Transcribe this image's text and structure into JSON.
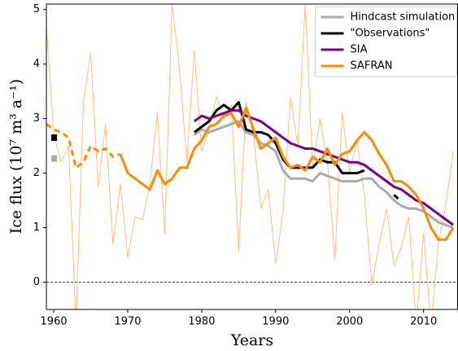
{
  "chart_data": {
    "type": "line",
    "ylabel": "Ice flux (10⁷ m³ a⁻¹)",
    "xlabel": "Years",
    "xlim": [
      1959,
      2014.6
    ],
    "ylim": [
      -0.5,
      5.1
    ],
    "xticks": [
      1960,
      1970,
      1980,
      1990,
      2000,
      2010
    ],
    "yticks": [
      0,
      1,
      2,
      3,
      4,
      5
    ],
    "hline": 0,
    "legend": "upper right",
    "series": [
      {
        "color": "#ffbf80",
        "style": "thin",
        "x": [
          1959,
          1960,
          1961,
          1962,
          1963,
          1964,
          1965,
          1966,
          1967,
          1968,
          1969,
          1970,
          1971,
          1972,
          1973,
          1974,
          1975,
          1976,
          1977,
          1978,
          1979,
          1980,
          1981,
          1982,
          1983,
          1984,
          1985,
          1986,
          1987,
          1988,
          1989,
          1990,
          1991,
          1992,
          1993,
          1994,
          1995,
          1996,
          1997,
          1998,
          1999,
          2000,
          2001,
          2002,
          2003,
          2004,
          2005,
          2006,
          2007,
          2008,
          2009,
          2010,
          2011,
          2012,
          2013,
          2014
        ],
        "values": [
          4.7,
          2.7,
          2.2,
          2.5,
          -0.8,
          3.3,
          4.2,
          1.75,
          2.9,
          0.7,
          1.8,
          0.45,
          1.2,
          1.15,
          1.8,
          3.1,
          0.9,
          5.1,
          3.9,
          2.2,
          4.25,
          2.4,
          2.8,
          3.4,
          3.0,
          3.25,
          0.55,
          3.3,
          2.7,
          1.35,
          1.7,
          0.33,
          1.3,
          3.4,
          2.5,
          5.1,
          2.1,
          3.0,
          2.2,
          0.4,
          3.1,
          2.0,
          2.6,
          1.6,
          -0.05,
          0.7,
          1.35,
          0.3,
          0.65,
          1.2,
          -0.8,
          0.9,
          -0.8,
          0.7,
          1.4,
          2.4
        ]
      },
      {
        "name": "Hindcast simulation",
        "color": "#aaaaaa",
        "style": "solid",
        "x": [
          1979,
          1980,
          1981,
          1982,
          1983,
          1984,
          1985,
          1986,
          1987,
          1988,
          1989,
          1990,
          1991,
          1992,
          1993,
          1994,
          1995,
          1996,
          1997,
          1998,
          1999,
          2000,
          2001,
          2002,
          2003,
          2004,
          2005,
          2006,
          2007,
          2008,
          2009,
          2010,
          2011,
          2012,
          2013,
          2014
        ],
        "values": [
          2.7,
          2.8,
          2.75,
          2.8,
          2.85,
          2.9,
          2.95,
          2.75,
          2.7,
          2.55,
          2.5,
          2.4,
          2.05,
          1.9,
          1.9,
          1.9,
          1.85,
          2.0,
          1.95,
          1.9,
          1.85,
          1.85,
          1.85,
          1.9,
          1.9,
          1.75,
          1.65,
          1.5,
          1.4,
          1.35,
          1.35,
          1.3,
          1.2,
          1.1,
          1.05,
          1.0
        ]
      },
      {
        "name": "\"Observations\"",
        "color": "#000000",
        "style": "solid",
        "x": [
          1979,
          1980,
          1981,
          1982,
          1983,
          1984,
          1985,
          1986,
          1987,
          1988,
          1989,
          1990,
          1991,
          1992,
          1993,
          1994,
          1995,
          1996,
          1997,
          1998,
          1999,
          2000,
          2001,
          2002
        ],
        "values": [
          2.75,
          2.85,
          2.95,
          3.15,
          3.25,
          3.15,
          3.3,
          2.8,
          2.75,
          2.75,
          2.7,
          2.55,
          2.25,
          2.1,
          2.1,
          2.1,
          2.1,
          2.25,
          2.2,
          2.2,
          2.0,
          2.0,
          2.0,
          2.05
        ]
      },
      {
        "color": "#000000",
        "style": "dashed",
        "x": [
          2006,
          2007
        ],
        "values": [
          1.6,
          1.48
        ]
      },
      {
        "name": "SIA",
        "color": "#800080",
        "style": "solid",
        "x": [
          1979,
          1980,
          1981,
          1982,
          1983,
          1984,
          1985,
          1986,
          1987,
          1988,
          1989,
          1990,
          1991,
          1992,
          1993,
          1994,
          1995,
          1996,
          1997,
          1998,
          1999,
          2000,
          2001,
          2002,
          2003,
          2004,
          2005,
          2006,
          2007,
          2008,
          2009,
          2010,
          2011,
          2012,
          2013,
          2014
        ],
        "values": [
          2.95,
          3.05,
          3.0,
          3.05,
          3.1,
          3.15,
          3.15,
          3.05,
          3.0,
          2.95,
          2.85,
          2.75,
          2.65,
          2.55,
          2.5,
          2.45,
          2.45,
          2.4,
          2.35,
          2.3,
          2.25,
          2.2,
          2.2,
          2.15,
          2.05,
          1.95,
          1.85,
          1.75,
          1.7,
          1.6,
          1.5,
          1.45,
          1.35,
          1.25,
          1.15,
          1.05
        ]
      },
      {
        "name": "SAFRAN",
        "color": "#ff8c00",
        "style": "solid",
        "x": [
          1969,
          1970,
          1971,
          1972,
          1973,
          1974,
          1975,
          1976,
          1977,
          1978,
          1979,
          1980,
          1981,
          1982,
          1983,
          1984,
          1985,
          1986,
          1987,
          1988,
          1989,
          1990,
          1991,
          1992,
          1993,
          1994,
          1995,
          1996,
          1997,
          1998,
          1999,
          2000,
          2001,
          2002,
          2003,
          2004,
          2005,
          2006,
          2007,
          2008,
          2009,
          2010,
          2011,
          2012,
          2013,
          2014
        ],
        "values": [
          2.35,
          2.0,
          1.9,
          1.8,
          1.7,
          2.05,
          1.8,
          1.9,
          2.1,
          2.1,
          2.45,
          2.6,
          2.85,
          2.9,
          3.05,
          3.1,
          2.85,
          3.2,
          2.8,
          2.45,
          2.55,
          2.65,
          2.3,
          2.1,
          2.15,
          2.05,
          2.3,
          2.2,
          2.45,
          2.15,
          2.35,
          2.4,
          2.6,
          2.75,
          2.6,
          2.35,
          2.15,
          1.85,
          1.85,
          1.75,
          1.6,
          1.35,
          1.0,
          0.78,
          0.78,
          1.0
        ]
      },
      {
        "color": "#ff8c00",
        "style": "dashed",
        "x": [
          1959,
          1960,
          1961,
          1962,
          1963,
          1964,
          1965,
          1966,
          1967,
          1968,
          1969
        ],
        "values": [
          2.9,
          2.8,
          2.75,
          2.65,
          2.1,
          2.2,
          2.5,
          2.4,
          2.45,
          2.3,
          2.35
        ]
      }
    ],
    "markers": [
      {
        "x": 1960,
        "y": 2.65,
        "color": "#000000"
      },
      {
        "x": 1960,
        "y": 2.27,
        "color": "#aaaaaa"
      }
    ]
  }
}
